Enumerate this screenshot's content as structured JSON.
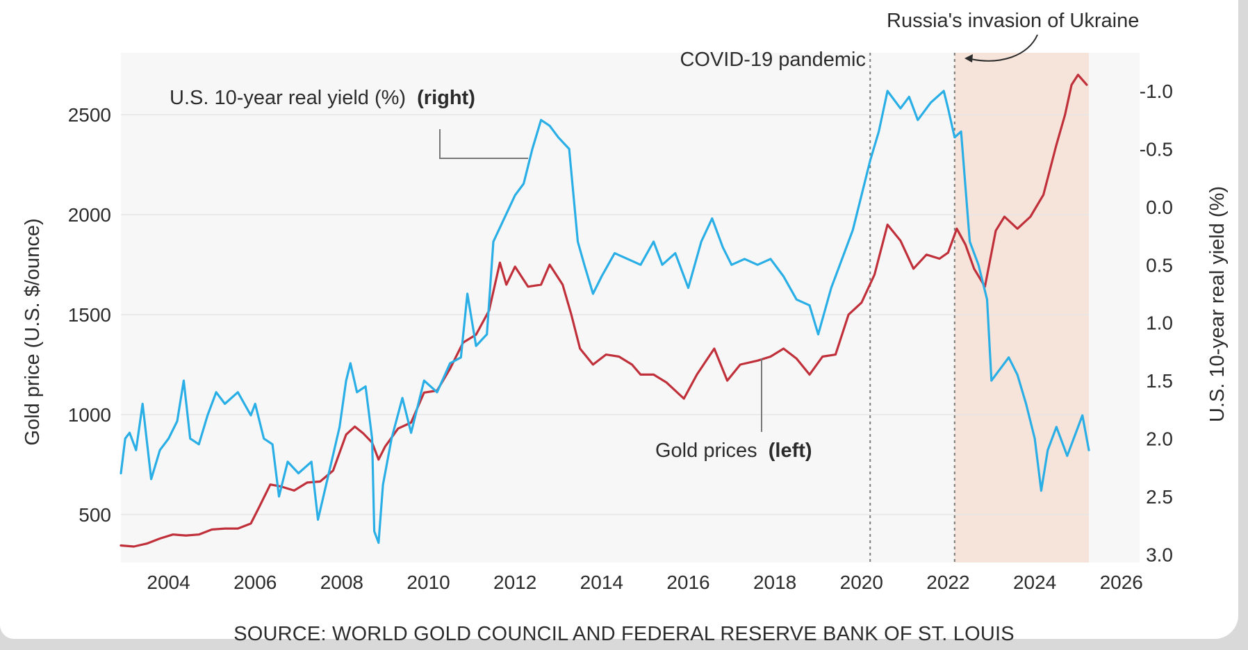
{
  "chart_data": {
    "type": "line",
    "x_range": [
      2002.9,
      2025.25
    ],
    "x_ticks": [
      "2004",
      "2006",
      "2008",
      "2010",
      "2012",
      "2014",
      "2016",
      "2018",
      "2020",
      "2022",
      "2024",
      "2026"
    ],
    "y_left": {
      "label": "Gold price (U.S. $/ounce)",
      "ticks": [
        "500",
        "1000",
        "1500",
        "2000",
        "2500"
      ],
      "range": [
        260,
        2810
      ]
    },
    "y_right": {
      "label": "U.S. 10-year real yield (%)",
      "inverted": true,
      "ticks": [
        "-1.0",
        "-0.5",
        "0.0",
        "0.5",
        "1.0",
        "1.5",
        "2.0",
        "2.5",
        "3.0"
      ],
      "range": [
        3.07,
        -1.33
      ]
    },
    "shaded_region": {
      "from": 2022.15,
      "to": 2025.25,
      "color": "#f6e3da"
    },
    "events": [
      {
        "x": 2020.2,
        "label": "COVID-19 pandemic"
      },
      {
        "x": 2022.15,
        "label": "Russia's invasion of Ukraine"
      }
    ],
    "annotations": {
      "yield": {
        "text": "U.S. 10-year real yield (%)",
        "bold": "(right)"
      },
      "gold": {
        "text": "Gold prices",
        "bold": "(left)"
      }
    },
    "source": "SOURCE: WORLD GOLD COUNCIL AND FEDERAL RESERVE BANK OF ST. LOUIS",
    "series": [
      {
        "name": "Gold prices",
        "axis": "left",
        "color": "#c0303a",
        "points": [
          [
            2002.9,
            345
          ],
          [
            2003.2,
            340
          ],
          [
            2003.5,
            355
          ],
          [
            2003.8,
            380
          ],
          [
            2004.1,
            400
          ],
          [
            2004.4,
            395
          ],
          [
            2004.7,
            400
          ],
          [
            2005.0,
            425
          ],
          [
            2005.3,
            430
          ],
          [
            2005.6,
            430
          ],
          [
            2005.9,
            455
          ],
          [
            2006.1,
            540
          ],
          [
            2006.35,
            650
          ],
          [
            2006.6,
            640
          ],
          [
            2006.9,
            620
          ],
          [
            2007.2,
            660
          ],
          [
            2007.5,
            665
          ],
          [
            2007.8,
            720
          ],
          [
            2008.1,
            900
          ],
          [
            2008.3,
            940
          ],
          [
            2008.5,
            905
          ],
          [
            2008.7,
            860
          ],
          [
            2008.85,
            775
          ],
          [
            2009.0,
            840
          ],
          [
            2009.3,
            930
          ],
          [
            2009.6,
            960
          ],
          [
            2009.9,
            1110
          ],
          [
            2010.2,
            1120
          ],
          [
            2010.5,
            1230
          ],
          [
            2010.8,
            1360
          ],
          [
            2011.1,
            1400
          ],
          [
            2011.4,
            1520
          ],
          [
            2011.65,
            1760
          ],
          [
            2011.8,
            1650
          ],
          [
            2012.0,
            1740
          ],
          [
            2012.3,
            1640
          ],
          [
            2012.6,
            1650
          ],
          [
            2012.8,
            1750
          ],
          [
            2013.1,
            1650
          ],
          [
            2013.3,
            1500
          ],
          [
            2013.5,
            1330
          ],
          [
            2013.8,
            1250
          ],
          [
            2014.1,
            1300
          ],
          [
            2014.4,
            1290
          ],
          [
            2014.7,
            1250
          ],
          [
            2014.9,
            1200
          ],
          [
            2015.2,
            1200
          ],
          [
            2015.5,
            1160
          ],
          [
            2015.9,
            1080
          ],
          [
            2016.2,
            1200
          ],
          [
            2016.6,
            1330
          ],
          [
            2016.9,
            1170
          ],
          [
            2017.2,
            1250
          ],
          [
            2017.6,
            1270
          ],
          [
            2017.9,
            1290
          ],
          [
            2018.2,
            1330
          ],
          [
            2018.5,
            1280
          ],
          [
            2018.8,
            1200
          ],
          [
            2019.1,
            1290
          ],
          [
            2019.4,
            1300
          ],
          [
            2019.7,
            1500
          ],
          [
            2020.0,
            1560
          ],
          [
            2020.3,
            1700
          ],
          [
            2020.6,
            1950
          ],
          [
            2020.9,
            1870
          ],
          [
            2021.2,
            1730
          ],
          [
            2021.5,
            1800
          ],
          [
            2021.8,
            1780
          ],
          [
            2022.0,
            1810
          ],
          [
            2022.2,
            1930
          ],
          [
            2022.4,
            1850
          ],
          [
            2022.6,
            1730
          ],
          [
            2022.85,
            1640
          ],
          [
            2023.1,
            1920
          ],
          [
            2023.3,
            1990
          ],
          [
            2023.6,
            1930
          ],
          [
            2023.9,
            1990
          ],
          [
            2024.2,
            2100
          ],
          [
            2024.5,
            2350
          ],
          [
            2024.7,
            2500
          ],
          [
            2024.85,
            2650
          ],
          [
            2025.0,
            2700
          ],
          [
            2025.2,
            2650
          ]
        ]
      },
      {
        "name": "U.S. 10-year real yield (%)",
        "axis": "right",
        "color": "#2aaee6",
        "points": [
          [
            2002.9,
            2.3
          ],
          [
            2003.0,
            2.0
          ],
          [
            2003.1,
            1.95
          ],
          [
            2003.25,
            2.1
          ],
          [
            2003.4,
            1.7
          ],
          [
            2003.6,
            2.35
          ],
          [
            2003.8,
            2.1
          ],
          [
            2004.0,
            2.0
          ],
          [
            2004.2,
            1.85
          ],
          [
            2004.35,
            1.5
          ],
          [
            2004.5,
            2.0
          ],
          [
            2004.7,
            2.05
          ],
          [
            2004.9,
            1.8
          ],
          [
            2005.1,
            1.6
          ],
          [
            2005.3,
            1.7
          ],
          [
            2005.6,
            1.6
          ],
          [
            2005.9,
            1.8
          ],
          [
            2006.0,
            1.7
          ],
          [
            2006.2,
            2.0
          ],
          [
            2006.4,
            2.05
          ],
          [
            2006.55,
            2.5
          ],
          [
            2006.75,
            2.2
          ],
          [
            2007.0,
            2.3
          ],
          [
            2007.3,
            2.2
          ],
          [
            2007.45,
            2.7
          ],
          [
            2007.7,
            2.3
          ],
          [
            2007.95,
            1.9
          ],
          [
            2008.1,
            1.5
          ],
          [
            2008.2,
            1.35
          ],
          [
            2008.35,
            1.6
          ],
          [
            2008.55,
            1.55
          ],
          [
            2008.7,
            2.0
          ],
          [
            2008.75,
            2.8
          ],
          [
            2008.85,
            2.9
          ],
          [
            2008.95,
            2.4
          ],
          [
            2009.15,
            2.0
          ],
          [
            2009.4,
            1.65
          ],
          [
            2009.6,
            1.95
          ],
          [
            2009.9,
            1.5
          ],
          [
            2010.2,
            1.6
          ],
          [
            2010.5,
            1.35
          ],
          [
            2010.75,
            1.3
          ],
          [
            2010.9,
            0.75
          ],
          [
            2011.1,
            1.2
          ],
          [
            2011.35,
            1.1
          ],
          [
            2011.5,
            0.3
          ],
          [
            2011.75,
            0.1
          ],
          [
            2012.0,
            -0.1
          ],
          [
            2012.2,
            -0.2
          ],
          [
            2012.4,
            -0.5
          ],
          [
            2012.6,
            -0.75
          ],
          [
            2012.8,
            -0.7
          ],
          [
            2013.0,
            -0.6
          ],
          [
            2013.25,
            -0.5
          ],
          [
            2013.45,
            0.3
          ],
          [
            2013.6,
            0.5
          ],
          [
            2013.8,
            0.75
          ],
          [
            2014.0,
            0.6
          ],
          [
            2014.3,
            0.4
          ],
          [
            2014.6,
            0.45
          ],
          [
            2014.9,
            0.5
          ],
          [
            2015.2,
            0.3
          ],
          [
            2015.4,
            0.5
          ],
          [
            2015.7,
            0.4
          ],
          [
            2016.0,
            0.7
          ],
          [
            2016.3,
            0.3
          ],
          [
            2016.55,
            0.1
          ],
          [
            2016.8,
            0.35
          ],
          [
            2017.0,
            0.5
          ],
          [
            2017.3,
            0.45
          ],
          [
            2017.6,
            0.5
          ],
          [
            2017.9,
            0.45
          ],
          [
            2018.2,
            0.6
          ],
          [
            2018.5,
            0.8
          ],
          [
            2018.8,
            0.85
          ],
          [
            2019.0,
            1.1
          ],
          [
            2019.3,
            0.7
          ],
          [
            2019.6,
            0.4
          ],
          [
            2019.8,
            0.2
          ],
          [
            2020.0,
            -0.1
          ],
          [
            2020.2,
            -0.4
          ],
          [
            2020.4,
            -0.65
          ],
          [
            2020.6,
            -1.0
          ],
          [
            2020.9,
            -0.85
          ],
          [
            2021.1,
            -0.95
          ],
          [
            2021.3,
            -0.75
          ],
          [
            2021.6,
            -0.9
          ],
          [
            2021.9,
            -1.0
          ],
          [
            2022.0,
            -0.85
          ],
          [
            2022.15,
            -0.6
          ],
          [
            2022.3,
            -0.65
          ],
          [
            2022.5,
            0.3
          ],
          [
            2022.7,
            0.5
          ],
          [
            2022.9,
            0.8
          ],
          [
            2023.0,
            1.5
          ],
          [
            2023.2,
            1.4
          ],
          [
            2023.4,
            1.3
          ],
          [
            2023.6,
            1.45
          ],
          [
            2023.8,
            1.7
          ],
          [
            2024.0,
            2.0
          ],
          [
            2024.15,
            2.45
          ],
          [
            2024.3,
            2.1
          ],
          [
            2024.5,
            1.9
          ],
          [
            2024.75,
            2.15
          ],
          [
            2024.95,
            1.95
          ],
          [
            2025.1,
            1.8
          ],
          [
            2025.2,
            2.0
          ],
          [
            2025.25,
            2.1
          ]
        ]
      }
    ]
  }
}
